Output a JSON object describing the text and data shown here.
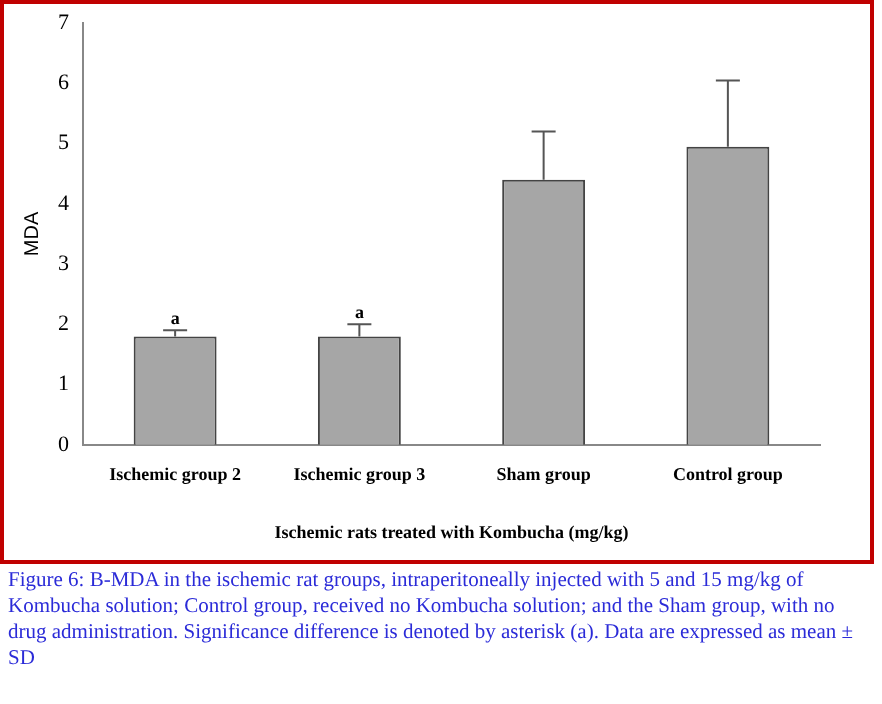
{
  "chart_data": {
    "type": "bar",
    "xlabel": "Ischemic rats treated with Kombucha (mg/kg)",
    "ylabel": "MDA",
    "categories": [
      "Ischemic group 2",
      "Ischemic group 3",
      "Sham group",
      "Control group"
    ],
    "values": [
      1.8,
      1.8,
      4.4,
      4.95
    ],
    "errors": [
      0.1,
      0.2,
      0.8,
      1.1
    ],
    "color": "#a6a6a6",
    "ylim": [
      0,
      7
    ],
    "yticks": [
      0,
      1,
      2,
      3,
      4,
      5,
      6,
      7
    ],
    "grid": false,
    "annotations": [
      {
        "text": "a",
        "x": "Ischemic group 2",
        "y": 1.9
      },
      {
        "text": "a",
        "x": "Ischemic group 3",
        "y": 2.0
      },
      "Figure 6: B-MDA in the ischemic rat groups, intraperitoneally injected with 5 and 15 mg/kg of Kombucha solution; Control group, received no Kombucha solution; and the Sham group, with no drug administration. Significance difference is denoted by asterisk (a). Data are expressed as mean ± SD"
    ]
  }
}
